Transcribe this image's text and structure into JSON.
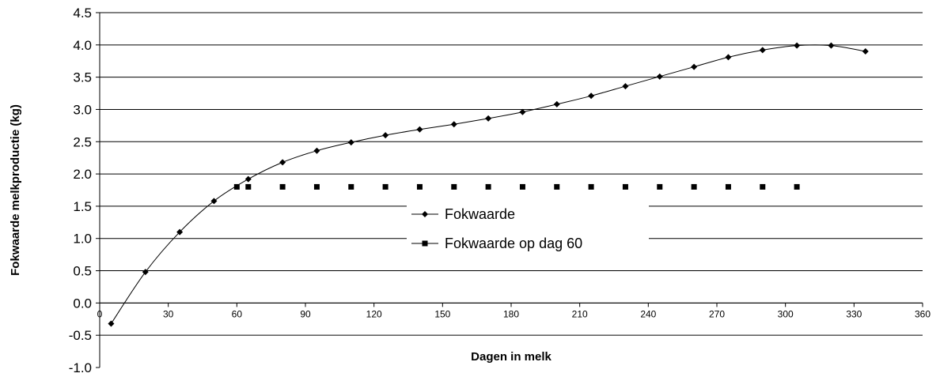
{
  "chart_data": {
    "type": "line",
    "title": "",
    "xlabel": "Dagen in melk",
    "ylabel": "Fokwaarde melkproductie (kg)",
    "xlim": [
      0,
      360
    ],
    "ylim": [
      -1.0,
      4.5
    ],
    "x_ticks": [
      "0",
      "30",
      "60",
      "90",
      "120",
      "150",
      "180",
      "210",
      "240",
      "270",
      "300",
      "330",
      "360"
    ],
    "y_ticks": [
      "-1.0",
      "-0.5",
      "0.0",
      "0.5",
      "1.0",
      "1.5",
      "2.0",
      "2.5",
      "3.0",
      "3.5",
      "4.0",
      "4.5"
    ],
    "grid": "horizontal",
    "legend_position": "center",
    "series": [
      {
        "name": "Fokwaarde",
        "marker": "diamond",
        "smooth": true,
        "color": "#000000",
        "x": [
          5,
          20,
          35,
          50,
          65,
          80,
          95,
          110,
          125,
          140,
          155,
          170,
          185,
          200,
          215,
          230,
          245,
          260,
          275,
          290,
          305,
          320,
          335
        ],
        "y": [
          -0.32,
          0.48,
          1.1,
          1.58,
          1.92,
          2.18,
          2.36,
          2.49,
          2.6,
          2.69,
          2.77,
          2.86,
          2.96,
          3.08,
          3.21,
          3.36,
          3.51,
          3.66,
          3.81,
          3.92,
          3.99,
          3.99,
          3.9
        ]
      },
      {
        "name": "Fokwaarde op dag 60",
        "marker": "square",
        "smooth": false,
        "color": "#000000",
        "x": [
          60,
          65,
          80,
          95,
          110,
          125,
          140,
          155,
          170,
          185,
          200,
          215,
          230,
          245,
          260,
          275,
          290,
          305
        ],
        "y": [
          1.8,
          1.8,
          1.8,
          1.8,
          1.8,
          1.8,
          1.8,
          1.8,
          1.8,
          1.8,
          1.8,
          1.8,
          1.8,
          1.8,
          1.8,
          1.8,
          1.8,
          1.8
        ]
      }
    ]
  }
}
